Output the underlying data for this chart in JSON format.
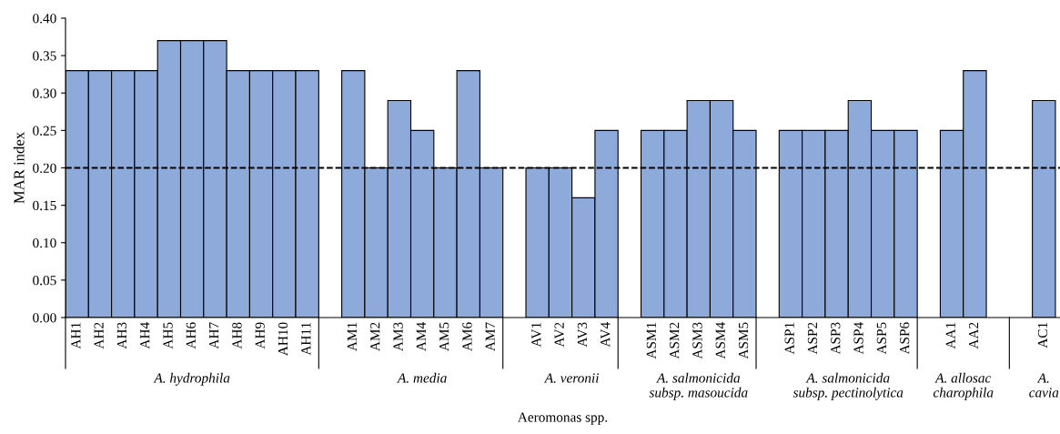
{
  "chart_data": {
    "type": "bar",
    "categories": [
      "AH1",
      "AH2",
      "AH3",
      "AH4",
      "AH5",
      "AH6",
      "AH7",
      "AH8",
      "AH9",
      "AH10",
      "AH11",
      null,
      "AM1",
      "AM2",
      "AM3",
      "AM4",
      "AM5",
      "AM6",
      "AM7",
      null,
      "AV1",
      "AV2",
      "AV3",
      "AV4",
      null,
      "ASM1",
      "ASM2",
      "ASM3",
      "ASM4",
      "ASM5",
      null,
      "ASP1",
      "ASP2",
      "ASP3",
      "ASP4",
      "ASP5",
      "ASP6",
      null,
      "AA1",
      "AA2",
      null,
      null,
      "AC1"
    ],
    "values": [
      0.33,
      0.33,
      0.33,
      0.33,
      0.37,
      0.37,
      0.37,
      0.33,
      0.33,
      0.33,
      0.33,
      null,
      0.33,
      0.2,
      0.29,
      0.25,
      0.2,
      0.33,
      0.2,
      null,
      0.2,
      0.2,
      0.16,
      0.25,
      null,
      0.25,
      0.25,
      0.29,
      0.29,
      0.25,
      null,
      0.25,
      0.25,
      0.25,
      0.29,
      0.25,
      0.25,
      null,
      0.25,
      0.33,
      null,
      null,
      0.29
    ],
    "color": "#8eaadb",
    "ylabel": "MAR index",
    "xlabel": "Aeromonas spp.",
    "annotations": [
      "A. hydrophila",
      "A. media",
      "A. veronii",
      "A. salmonicida\nsubsp. masoucida",
      "A. salmonicida\nsubsp. pectinolytica",
      "A. allosac\ncharophila",
      "A.\ncavia"
    ],
    "ylim": [
      0,
      0.4
    ],
    "yticks": [
      {
        "value": 0,
        "label": "0.00"
      },
      {
        "value": 0.05,
        "label": "0.05"
      },
      {
        "value": 0.1,
        "label": "0.10"
      },
      {
        "value": 0.15,
        "label": "0.15"
      },
      {
        "value": 0.2,
        "label": "0.20"
      },
      {
        "value": 0.25,
        "label": "0.25"
      },
      {
        "value": 0.3,
        "label": "0.30"
      },
      {
        "value": 0.35,
        "label": "0.35"
      },
      {
        "value": 0.4,
        "label": "0.40"
      }
    ],
    "ref_lines": [
      {
        "axis": "y",
        "value": 0.2,
        "color": "#000000",
        "line_style": "dashed"
      }
    ],
    "grid": false,
    "legend": false
  }
}
